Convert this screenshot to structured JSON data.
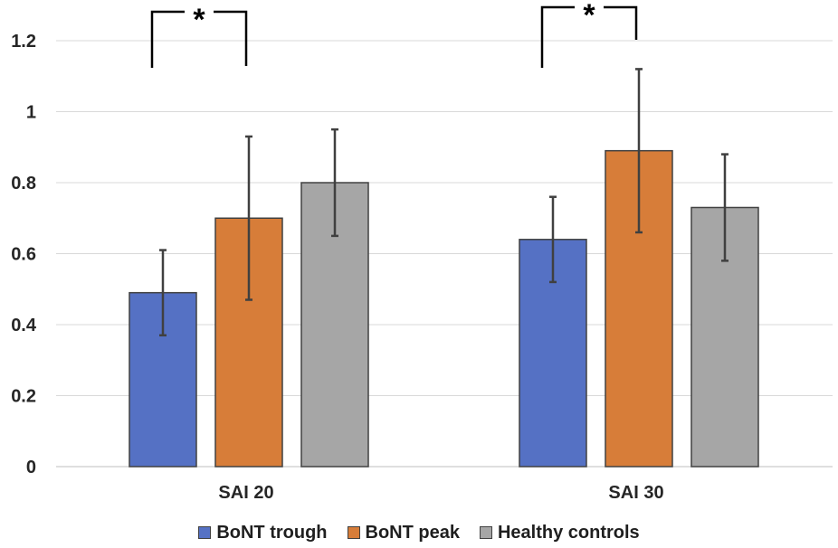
{
  "chart_data": {
    "type": "bar",
    "categories": [
      "SAI 20",
      "SAI 30"
    ],
    "series": [
      {
        "name": "BoNT trough",
        "color": "#5571c4",
        "values": [
          0.49,
          0.64
        ],
        "error": [
          0.12,
          0.12
        ]
      },
      {
        "name": "BoNT peak",
        "color": "#d77d39",
        "values": [
          0.7,
          0.89
        ],
        "error": [
          0.23,
          0.23
        ]
      },
      {
        "name": "Healthy controls",
        "color": "#a6a6a6",
        "values": [
          0.8,
          0.73
        ],
        "error": [
          0.15,
          0.15
        ]
      }
    ],
    "ylim": [
      0,
      1.2
    ],
    "yticks": [
      "0",
      "0.2",
      "0.4",
      "0.6",
      "0.8",
      "1",
      "1.2"
    ],
    "grid": true,
    "legend_position": "bottom",
    "annotations": [
      {
        "text": "*",
        "category": "SAI 20",
        "between": [
          "BoNT trough",
          "BoNT peak"
        ]
      },
      {
        "text": "*",
        "category": "SAI 30",
        "between": [
          "BoNT trough",
          "BoNT peak"
        ]
      }
    ]
  }
}
